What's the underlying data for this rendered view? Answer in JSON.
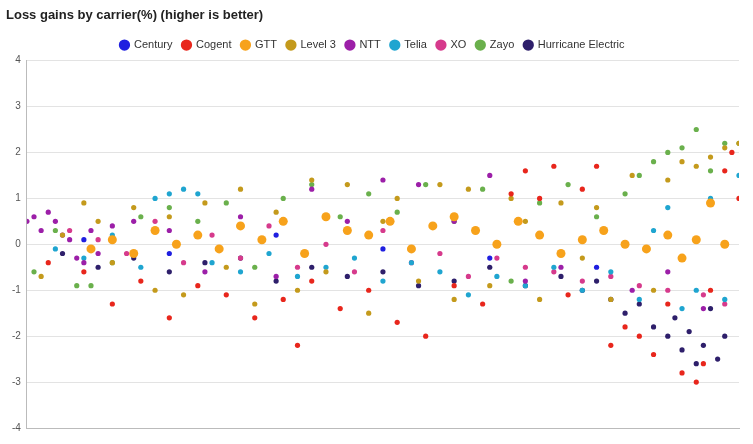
{
  "chart_data": {
    "type": "scatter",
    "title": "Loss gains by carrier(%) (higher is better)",
    "legend": "top",
    "grid": true,
    "tick_labels": "y",
    "xlim": [
      0,
      100
    ],
    "ylim": [
      -4,
      4
    ],
    "yticks": [
      -4,
      -3,
      -2,
      -1,
      0,
      1,
      2,
      3,
      4
    ],
    "series": [
      {
        "name": "Century",
        "color": "#1f1fe0",
        "marker": "circle",
        "x": [
          8,
          20,
          35,
          50,
          65,
          80
        ],
        "values": [
          0.1,
          -0.2,
          0.2,
          -0.1,
          -0.3,
          -0.5
        ]
      },
      {
        "name": "Cogent",
        "color": "#e8261c",
        "marker": "circle",
        "x": [
          3,
          8,
          12,
          16,
          20,
          24,
          28,
          32,
          36,
          38,
          40,
          44,
          48,
          52,
          56,
          60,
          64,
          68,
          70,
          72,
          74,
          76,
          78,
          80,
          82,
          84,
          86,
          88,
          90,
          92,
          94,
          95,
          96,
          98,
          99,
          100
        ],
        "values": [
          -0.4,
          -0.6,
          -1.3,
          -0.8,
          -1.6,
          -0.9,
          -1.1,
          -1.6,
          -1.2,
          -2.2,
          -0.8,
          -1.4,
          -1.0,
          -1.7,
          -2.0,
          -0.9,
          -1.3,
          1.1,
          1.6,
          1.0,
          1.7,
          -1.1,
          1.2,
          1.7,
          -2.2,
          -1.8,
          -2.0,
          -2.4,
          -1.3,
          -2.8,
          -3.0,
          -2.6,
          -1.0,
          1.6,
          2.0,
          1.0
        ]
      },
      {
        "name": "GTT",
        "color": "#f7a21b",
        "marker": "large_circle",
        "x": [
          9,
          12,
          15,
          18,
          21,
          24,
          27,
          30,
          33,
          36,
          39,
          42,
          45,
          48,
          51,
          54,
          57,
          60,
          63,
          66,
          69,
          72,
          75,
          78,
          81,
          84,
          87,
          90,
          92,
          94,
          96,
          98
        ],
        "values": [
          -0.1,
          0.1,
          -0.2,
          0.3,
          0.0,
          0.2,
          -0.1,
          0.4,
          0.1,
          0.5,
          -0.2,
          0.6,
          0.3,
          0.2,
          0.5,
          -0.1,
          0.4,
          0.6,
          0.3,
          0.0,
          0.5,
          0.2,
          -0.2,
          0.1,
          0.3,
          0.0,
          -0.1,
          0.2,
          -0.3,
          0.1,
          0.9,
          0.0
        ]
      },
      {
        "name": "Level 3",
        "color": "#c49a1c",
        "marker": "circle",
        "x": [
          2,
          5,
          8,
          10,
          12,
          15,
          18,
          20,
          22,
          25,
          28,
          30,
          32,
          35,
          38,
          40,
          42,
          45,
          48,
          50,
          52,
          55,
          58,
          60,
          62,
          65,
          68,
          70,
          72,
          75,
          78,
          80,
          82,
          85,
          88,
          90,
          92,
          94,
          96,
          98,
          100
        ],
        "values": [
          -0.7,
          0.2,
          0.9,
          0.5,
          -0.4,
          0.8,
          -1.0,
          0.6,
          -1.1,
          0.9,
          -0.5,
          1.2,
          -1.3,
          0.7,
          -1.0,
          1.4,
          -0.6,
          1.3,
          -1.5,
          0.5,
          1.0,
          -0.8,
          1.3,
          -1.2,
          1.2,
          -0.9,
          1.0,
          0.5,
          -1.2,
          0.9,
          -0.3,
          0.8,
          -1.2,
          1.5,
          -1.0,
          1.4,
          1.8,
          1.7,
          1.9,
          2.1,
          2.2
        ]
      },
      {
        "name": "NTT",
        "color": "#9c1fa8",
        "marker": "circle",
        "x": [
          0,
          1,
          2,
          3,
          4,
          5,
          6,
          7,
          8,
          9,
          10,
          12,
          15,
          20,
          25,
          30,
          35,
          40,
          45,
          50,
          55,
          60,
          65,
          70,
          75,
          85,
          90,
          95
        ],
        "values": [
          0.5,
          0.6,
          0.3,
          0.7,
          0.5,
          0.2,
          0.1,
          -0.3,
          -0.4,
          0.3,
          -0.2,
          0.4,
          0.5,
          0.3,
          -0.6,
          0.6,
          -0.7,
          1.2,
          0.5,
          1.4,
          1.3,
          0.5,
          1.5,
          -0.8,
          -0.5,
          -1.0,
          -0.6,
          -1.4
        ]
      },
      {
        "name": "Telia",
        "color": "#1fa5d0",
        "marker": "circle",
        "x": [
          4,
          8,
          12,
          16,
          18,
          20,
          22,
          24,
          26,
          30,
          34,
          38,
          42,
          46,
          50,
          54,
          58,
          62,
          66,
          70,
          74,
          78,
          82,
          86,
          88,
          90,
          92,
          94,
          96,
          98,
          100
        ],
        "values": [
          -0.1,
          -0.3,
          0.2,
          -0.5,
          1.0,
          1.1,
          1.2,
          1.1,
          -0.4,
          -0.6,
          -0.2,
          -0.7,
          -0.5,
          -0.3,
          -0.8,
          -0.4,
          -0.6,
          -1.1,
          -0.7,
          -0.9,
          -0.5,
          -1.0,
          -0.6,
          -1.2,
          0.3,
          0.8,
          -1.4,
          -1.0,
          1.0,
          -1.2,
          1.5
        ]
      },
      {
        "name": "XO",
        "color": "#d63a8c",
        "marker": "circle",
        "x": [
          6,
          10,
          14,
          18,
          22,
          26,
          30,
          34,
          38,
          42,
          46,
          50,
          54,
          58,
          62,
          66,
          70,
          74,
          78,
          82,
          86,
          90,
          95,
          98
        ],
        "values": [
          0.3,
          0.1,
          -0.2,
          0.5,
          -0.4,
          0.2,
          -0.3,
          0.4,
          -0.5,
          0.0,
          -0.6,
          0.3,
          -0.4,
          -0.2,
          -0.7,
          -0.3,
          -0.5,
          -0.6,
          -0.8,
          -0.7,
          -0.9,
          -1.0,
          -1.1,
          -1.3
        ]
      },
      {
        "name": "Zayo",
        "color": "#6ab04c",
        "marker": "circle",
        "x": [
          1,
          4,
          7,
          9,
          12,
          16,
          20,
          24,
          28,
          32,
          36,
          40,
          44,
          48,
          52,
          56,
          60,
          64,
          68,
          72,
          76,
          80,
          84,
          86,
          88,
          90,
          92,
          94,
          96,
          98,
          100
        ],
        "values": [
          -0.6,
          0.3,
          -0.9,
          -0.9,
          -0.4,
          0.6,
          0.8,
          0.5,
          0.9,
          -0.5,
          1.0,
          1.3,
          0.6,
          1.1,
          0.7,
          1.3,
          0.5,
          1.2,
          -0.8,
          0.9,
          1.3,
          0.6,
          1.1,
          1.5,
          1.8,
          2.0,
          2.1,
          2.5,
          1.6,
          2.2,
          2.2
        ]
      },
      {
        "name": "Hurricane Electric",
        "color": "#2e1f6b",
        "marker": "circle",
        "x": [
          5,
          10,
          15,
          20,
          25,
          30,
          35,
          40,
          45,
          50,
          55,
          60,
          65,
          70,
          75,
          78,
          80,
          82,
          84,
          86,
          88,
          90,
          91,
          92,
          93,
          94,
          95,
          96,
          97,
          98
        ],
        "values": [
          -0.2,
          -0.5,
          -0.3,
          -0.6,
          -0.4,
          -0.3,
          -0.8,
          -0.5,
          -0.7,
          -0.6,
          -0.9,
          -0.8,
          -0.5,
          -0.9,
          -0.7,
          -1.0,
          -0.8,
          -1.2,
          -1.5,
          -1.3,
          -1.8,
          -2.0,
          -1.6,
          -2.3,
          -1.9,
          -2.6,
          -2.2,
          -1.4,
          -2.5,
          -2.0
        ]
      }
    ]
  }
}
